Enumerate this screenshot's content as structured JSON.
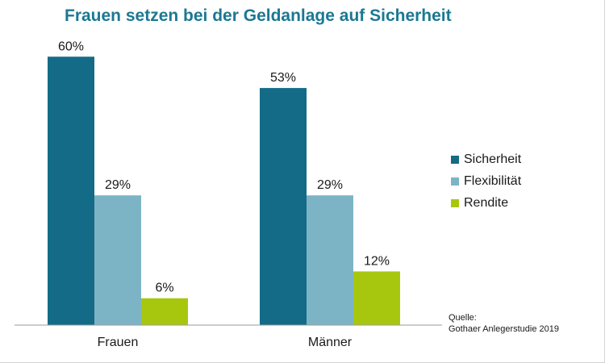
{
  "chart_data": {
    "type": "bar",
    "title": "Frauen setzen bei der Geldanlage auf Sicherheit",
    "categories": [
      "Frauen",
      "Männer"
    ],
    "series": [
      {
        "name": "Sicherheit",
        "values": [
          60,
          53
        ],
        "labels": [
          "60%",
          "53%"
        ],
        "color": "#136b87"
      },
      {
        "name": "Flexibilität",
        "values": [
          29,
          29
        ],
        "labels": [
          "29%",
          "29%"
        ],
        "color": "#7cb4c6"
      },
      {
        "name": "Rendite",
        "values": [
          6,
          12
        ],
        "labels": [
          "6%",
          "12%"
        ],
        "color": "#a7c70e"
      }
    ],
    "ylim": [
      0,
      66
    ],
    "legend_position": "right",
    "grid": false
  },
  "source": {
    "label": "Quelle:",
    "text": "Gothaer Anlegerstudie 2019"
  }
}
